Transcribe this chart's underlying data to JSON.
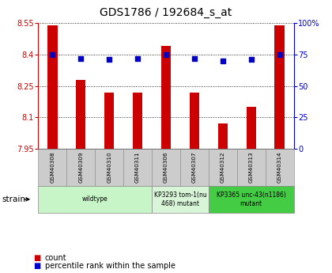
{
  "title": "GDS1786 / 192684_s_at",
  "samples": [
    "GSM40308",
    "GSM40309",
    "GSM40310",
    "GSM40311",
    "GSM40306",
    "GSM40307",
    "GSM40312",
    "GSM40313",
    "GSM40314"
  ],
  "counts": [
    8.54,
    8.28,
    8.22,
    8.22,
    8.44,
    8.22,
    8.07,
    8.15,
    8.54
  ],
  "percentiles": [
    75,
    72,
    71,
    72,
    75,
    72,
    70,
    71,
    75
  ],
  "ylim_left": [
    7.95,
    8.55
  ],
  "ylim_right": [
    0,
    100
  ],
  "yticks_left": [
    7.95,
    8.1,
    8.25,
    8.4,
    8.55
  ],
  "yticks_right": [
    0,
    25,
    50,
    75,
    100
  ],
  "ytick_labels_right": [
    "0",
    "25",
    "50",
    "75",
    "100%"
  ],
  "groups": [
    {
      "label": "wildtype",
      "indices": [
        0,
        1,
        2,
        3
      ],
      "color": "#c8f5c8"
    },
    {
      "label": "KP3293 tom-1(nu\n468) mutant",
      "indices": [
        4,
        5
      ],
      "color": "#d8f5d8"
    },
    {
      "label": "KP3365 unc-43(n1186)\nmutant",
      "indices": [
        6,
        7,
        8
      ],
      "color": "#44cc44"
    }
  ],
  "bar_color": "#cc0000",
  "dot_color": "#0000cc",
  "grid_color": "#000000",
  "left_axis_color": "#cc0000",
  "right_axis_color": "#0000cc",
  "bg_color": "#ffffff",
  "xlabel_area_color": "#cccccc",
  "bar_width": 0.35
}
